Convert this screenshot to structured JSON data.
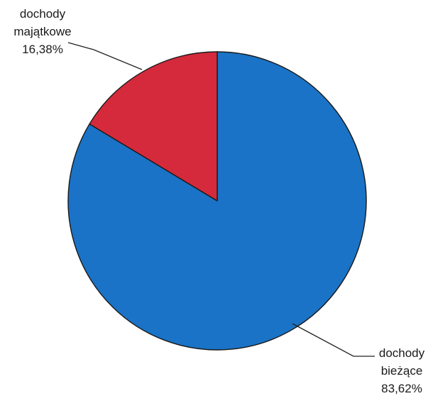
{
  "chart_data": {
    "type": "pie",
    "title": "",
    "slices": [
      {
        "id": "biezace",
        "label_lines": [
          "dochody",
          "bieżące",
          "83,62%"
        ],
        "value": 83.62,
        "color": "#1a73c6"
      },
      {
        "id": "majatkowe",
        "label_lines": [
          "dochody",
          "majątkowe",
          "16,38%"
        ],
        "value": 16.38,
        "color": "#d42a3c"
      }
    ],
    "legend": "none",
    "data_labels": "outside with leader lines"
  }
}
